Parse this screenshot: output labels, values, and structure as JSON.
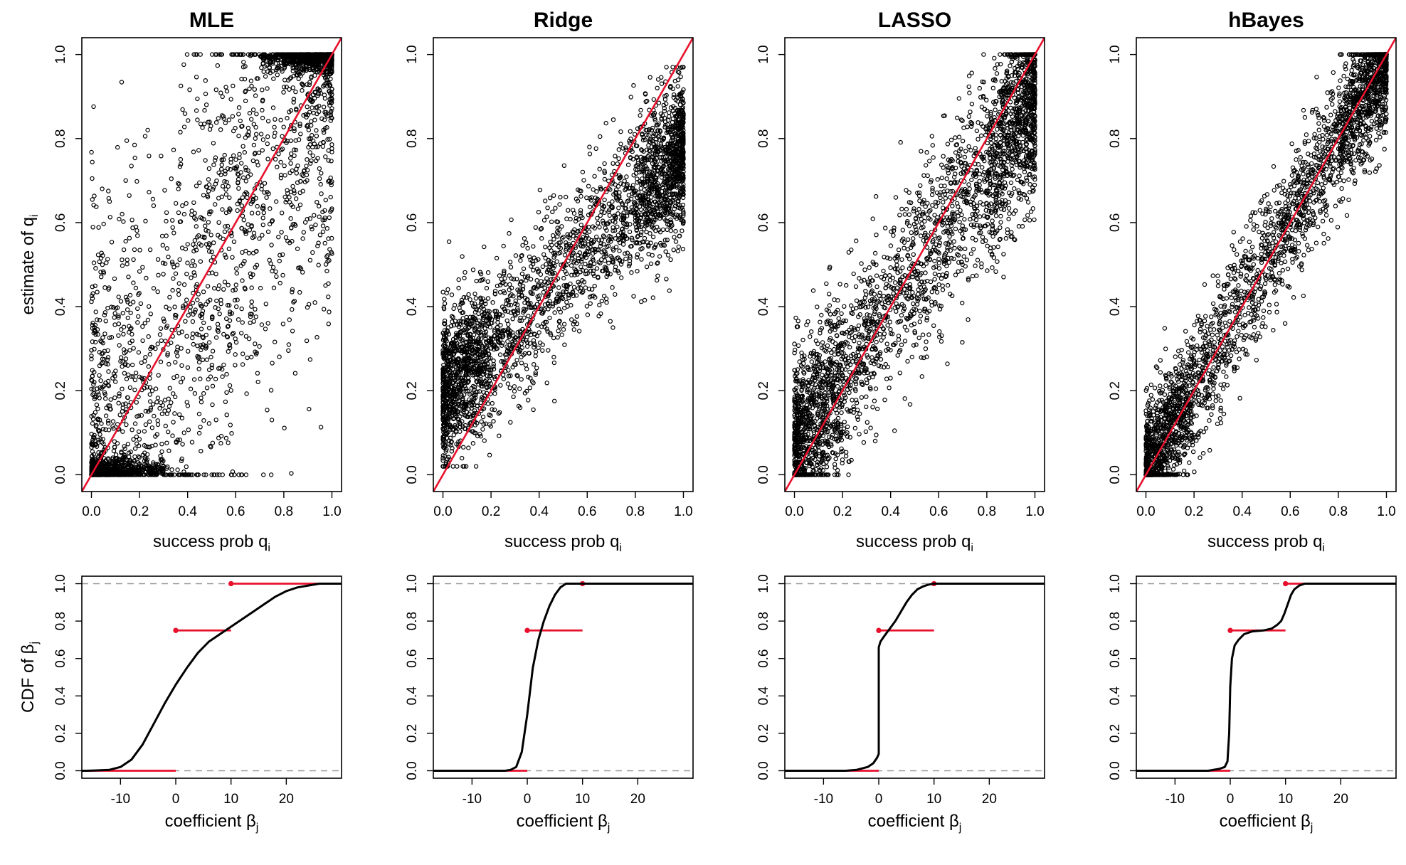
{
  "chart_data": [
    {
      "type": "scatter",
      "title": "MLE",
      "xlabel": "success prob  q",
      "xlabel_sub": "i",
      "ylabel": "estimate of q",
      "ylabel_sub": "i",
      "xlim": [
        0,
        1
      ],
      "ylim": [
        0,
        1
      ],
      "xticks": [
        "0.0",
        "0.2",
        "0.4",
        "0.6",
        "0.8",
        "1.0"
      ],
      "yticks": [
        "0.0",
        "0.2",
        "0.4",
        "0.6",
        "0.8",
        "1.0"
      ],
      "reference_line": {
        "slope": 1,
        "intercept": 0,
        "color": "#e8112d"
      },
      "pattern": "wide spread; clusters at estimate 0 for low q and at 1 for high q",
      "n_points_approx": 3000
    },
    {
      "type": "scatter",
      "title": "Ridge",
      "xlabel": "success prob  q",
      "xlabel_sub": "i",
      "ylabel": "",
      "ylabel_sub": "",
      "xlim": [
        0,
        1
      ],
      "ylim": [
        0,
        1
      ],
      "xticks": [
        "0.0",
        "0.2",
        "0.4",
        "0.6",
        "0.8",
        "1.0"
      ],
      "yticks": [
        "0.0",
        "0.2",
        "0.4",
        "0.6",
        "0.8",
        "1.0"
      ],
      "reference_line": {
        "slope": 1,
        "intercept": 0,
        "color": "#e8112d"
      },
      "pattern": "shrunk toward middle: estimate approx 0.2 + 0.55 q",
      "n_points_approx": 3000
    },
    {
      "type": "scatter",
      "title": "LASSO",
      "xlabel": "success prob  q",
      "xlabel_sub": "i",
      "ylabel": "",
      "ylabel_sub": "",
      "xlim": [
        0,
        1
      ],
      "ylim": [
        0,
        1
      ],
      "xticks": [
        "0.0",
        "0.2",
        "0.4",
        "0.6",
        "0.8",
        "1.0"
      ],
      "yticks": [
        "0.0",
        "0.2",
        "0.4",
        "0.6",
        "0.8",
        "1.0"
      ],
      "reference_line": {
        "slope": 1,
        "intercept": 0,
        "color": "#e8112d"
      },
      "pattern": "moderate spread around diagonal, estimate approx 0.1 + 0.8 q",
      "n_points_approx": 3000
    },
    {
      "type": "scatter",
      "title": "hBayes",
      "xlabel": "success prob  q",
      "xlabel_sub": "i",
      "ylabel": "",
      "ylabel_sub": "",
      "xlim": [
        0,
        1
      ],
      "ylim": [
        0,
        1
      ],
      "xticks": [
        "0.0",
        "0.2",
        "0.4",
        "0.6",
        "0.8",
        "1.0"
      ],
      "yticks": [
        "0.0",
        "0.2",
        "0.4",
        "0.6",
        "0.8",
        "1.0"
      ],
      "reference_line": {
        "slope": 1,
        "intercept": 0,
        "color": "#e8112d"
      },
      "pattern": "tight spread around the diagonal",
      "n_points_approx": 3000
    },
    {
      "type": "line",
      "panel": "CDF",
      "method": "MLE",
      "xlabel": "coefficient  β",
      "xlabel_sub": "j",
      "ylabel": "CDF of  β",
      "ylabel_sub": "j",
      "xlim": [
        -17,
        30
      ],
      "ylim": [
        0,
        1
      ],
      "xticks": [
        -10,
        0,
        10,
        20
      ],
      "yticks": [
        "0.0",
        "0.2",
        "0.4",
        "0.6",
        "0.8",
        "1.0"
      ],
      "hlines": [
        0,
        1
      ],
      "cdf": {
        "x": [
          -16,
          -12,
          -10,
          -8,
          -6,
          -4,
          -2,
          0,
          2,
          4,
          6,
          8,
          10,
          12,
          14,
          16,
          18,
          20,
          22,
          24,
          26,
          28
        ],
        "y": [
          0,
          0.005,
          0.02,
          0.06,
          0.14,
          0.25,
          0.36,
          0.46,
          0.55,
          0.63,
          0.69,
          0.73,
          0.77,
          0.81,
          0.85,
          0.89,
          0.93,
          0.96,
          0.98,
          0.99,
          1,
          1
        ]
      },
      "true_cdf_steps": [
        {
          "x0": -17,
          "x1": 0,
          "y": 0
        },
        {
          "x0": 0,
          "x1": 10,
          "y": 0.75
        },
        {
          "x0": 10,
          "x1": 30,
          "y": 1
        }
      ],
      "true_color": "#e8112d"
    },
    {
      "type": "line",
      "panel": "CDF",
      "method": "Ridge",
      "xlabel": "coefficient  β",
      "xlabel_sub": "j",
      "ylabel": "",
      "ylabel_sub": "",
      "xlim": [
        -17,
        30
      ],
      "ylim": [
        0,
        1
      ],
      "xticks": [
        -10,
        0,
        10,
        20
      ],
      "yticks": [
        "0.0",
        "0.2",
        "0.4",
        "0.6",
        "0.8",
        "1.0"
      ],
      "hlines": [
        0,
        1
      ],
      "cdf": {
        "x": [
          -4,
          -3,
          -2,
          -1,
          0,
          1,
          2,
          3,
          4,
          5,
          6,
          7
        ],
        "y": [
          0,
          0.005,
          0.02,
          0.1,
          0.3,
          0.55,
          0.7,
          0.8,
          0.88,
          0.94,
          0.98,
          1
        ]
      },
      "true_cdf_steps": [
        {
          "x0": -17,
          "x1": 0,
          "y": 0
        },
        {
          "x0": 0,
          "x1": 10,
          "y": 0.75
        },
        {
          "x0": 10,
          "x1": 30,
          "y": 1
        }
      ],
      "true_color": "#e8112d"
    },
    {
      "type": "line",
      "panel": "CDF",
      "method": "LASSO",
      "xlabel": "coefficient  β",
      "xlabel_sub": "j",
      "ylabel": "",
      "ylabel_sub": "",
      "xlim": [
        -17,
        30
      ],
      "ylim": [
        0,
        1
      ],
      "xticks": [
        -10,
        0,
        10,
        20
      ],
      "yticks": [
        "0.0",
        "0.2",
        "0.4",
        "0.6",
        "0.8",
        "1.0"
      ],
      "hlines": [
        0,
        1
      ],
      "cdf": {
        "x": [
          -6,
          -4,
          -2,
          -1,
          -0.3,
          0,
          0,
          0.3,
          1,
          2,
          3,
          4,
          5,
          6,
          7,
          8,
          9,
          10,
          11
        ],
        "y": [
          0,
          0.005,
          0.02,
          0.04,
          0.07,
          0.09,
          0.66,
          0.69,
          0.72,
          0.76,
          0.8,
          0.85,
          0.9,
          0.94,
          0.97,
          0.985,
          0.995,
          1,
          1
        ]
      },
      "true_cdf_steps": [
        {
          "x0": -17,
          "x1": 0,
          "y": 0
        },
        {
          "x0": 0,
          "x1": 10,
          "y": 0.75
        },
        {
          "x0": 10,
          "x1": 30,
          "y": 1
        }
      ],
      "true_color": "#e8112d"
    },
    {
      "type": "line",
      "panel": "CDF",
      "method": "hBayes",
      "xlabel": "coefficient  β",
      "xlabel_sub": "j",
      "ylabel": "",
      "ylabel_sub": "",
      "xlim": [
        -17,
        30
      ],
      "ylim": [
        0,
        1
      ],
      "xticks": [
        -10,
        0,
        10,
        20
      ],
      "yticks": [
        "0.0",
        "0.2",
        "0.4",
        "0.6",
        "0.8",
        "1.0"
      ],
      "hlines": [
        0,
        1
      ],
      "cdf": {
        "x": [
          -4,
          -2,
          -1,
          -0.5,
          -0.2,
          0,
          0.3,
          0.8,
          1.5,
          2.5,
          4,
          6,
          7.5,
          8.5,
          9.2,
          9.8,
          10.4,
          11,
          11.6,
          12.5,
          13.5
        ],
        "y": [
          0,
          0.01,
          0.02,
          0.05,
          0.2,
          0.45,
          0.6,
          0.67,
          0.7,
          0.73,
          0.745,
          0.75,
          0.76,
          0.78,
          0.8,
          0.84,
          0.89,
          0.94,
          0.97,
          0.99,
          1
        ]
      },
      "true_cdf_steps": [
        {
          "x0": -17,
          "x1": 0,
          "y": 0
        },
        {
          "x0": 0,
          "x1": 10,
          "y": 0.75
        },
        {
          "x0": 10,
          "x1": 30,
          "y": 1
        }
      ],
      "true_color": "#e8112d"
    }
  ]
}
